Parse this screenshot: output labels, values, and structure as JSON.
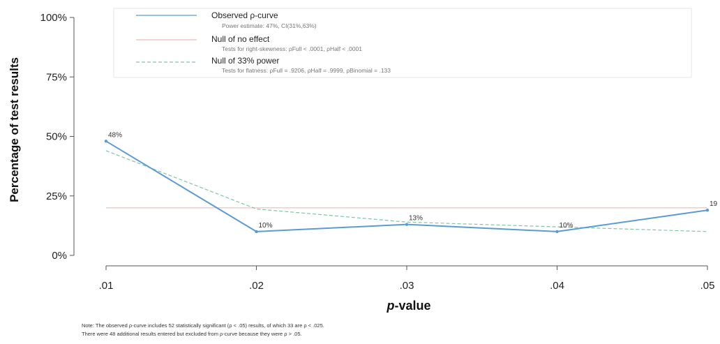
{
  "chart_data": {
    "type": "line",
    "x": [
      0.01,
      0.02,
      0.03,
      0.04,
      0.05
    ],
    "x_tick_labels": [
      ".01",
      ".02",
      ".03",
      ".04",
      ".05"
    ],
    "xlabel_italic": "p",
    "xlabel_rest": "-value",
    "ylabel": "Percentage of test results",
    "ylim": [
      0,
      100
    ],
    "y_ticks": [
      0,
      25,
      50,
      75,
      100
    ],
    "y_tick_labels": [
      "0%",
      "25%",
      "50%",
      "75%",
      "100%"
    ],
    "grid": false,
    "legend_position": "top",
    "series": [
      {
        "name": "Observed p-curve",
        "legend_label": "Observed ρ-curve",
        "legend_detail": "Power estimate: 47%, CI(31%,63%)",
        "color": "#5b9bd5",
        "style": "solid",
        "values": [
          48,
          10,
          13,
          10,
          19
        ],
        "data_labels": [
          "48%",
          "10%",
          "13%",
          "10%",
          "19"
        ]
      },
      {
        "name": "Null of no effect",
        "legend_label": "Null of no effect",
        "legend_detail": "Tests for right-skewness: ρFull < .0001, ρHalf < .0001",
        "color": "#f4b6b6",
        "style": "solid",
        "values": [
          20,
          20,
          20,
          20,
          20
        ]
      },
      {
        "name": "Null of 33% power",
        "legend_label": "Null of 33% power",
        "legend_detail": "Tests for flatness: ρFull = .9206, ρHalf = .9999, ρBinomial = .133",
        "color": "#7ec6a0",
        "style": "dashed",
        "values": [
          44,
          19.5,
          14,
          12,
          10
        ]
      }
    ]
  },
  "note": {
    "line1": "Note: The observed ρ-curve includes 52 statistically significant (ρ < .05) results, of which 33 are ρ < .025.",
    "line2": "There were 48 additional results entered but excluded from ρ-curve because they were ρ > .05."
  }
}
